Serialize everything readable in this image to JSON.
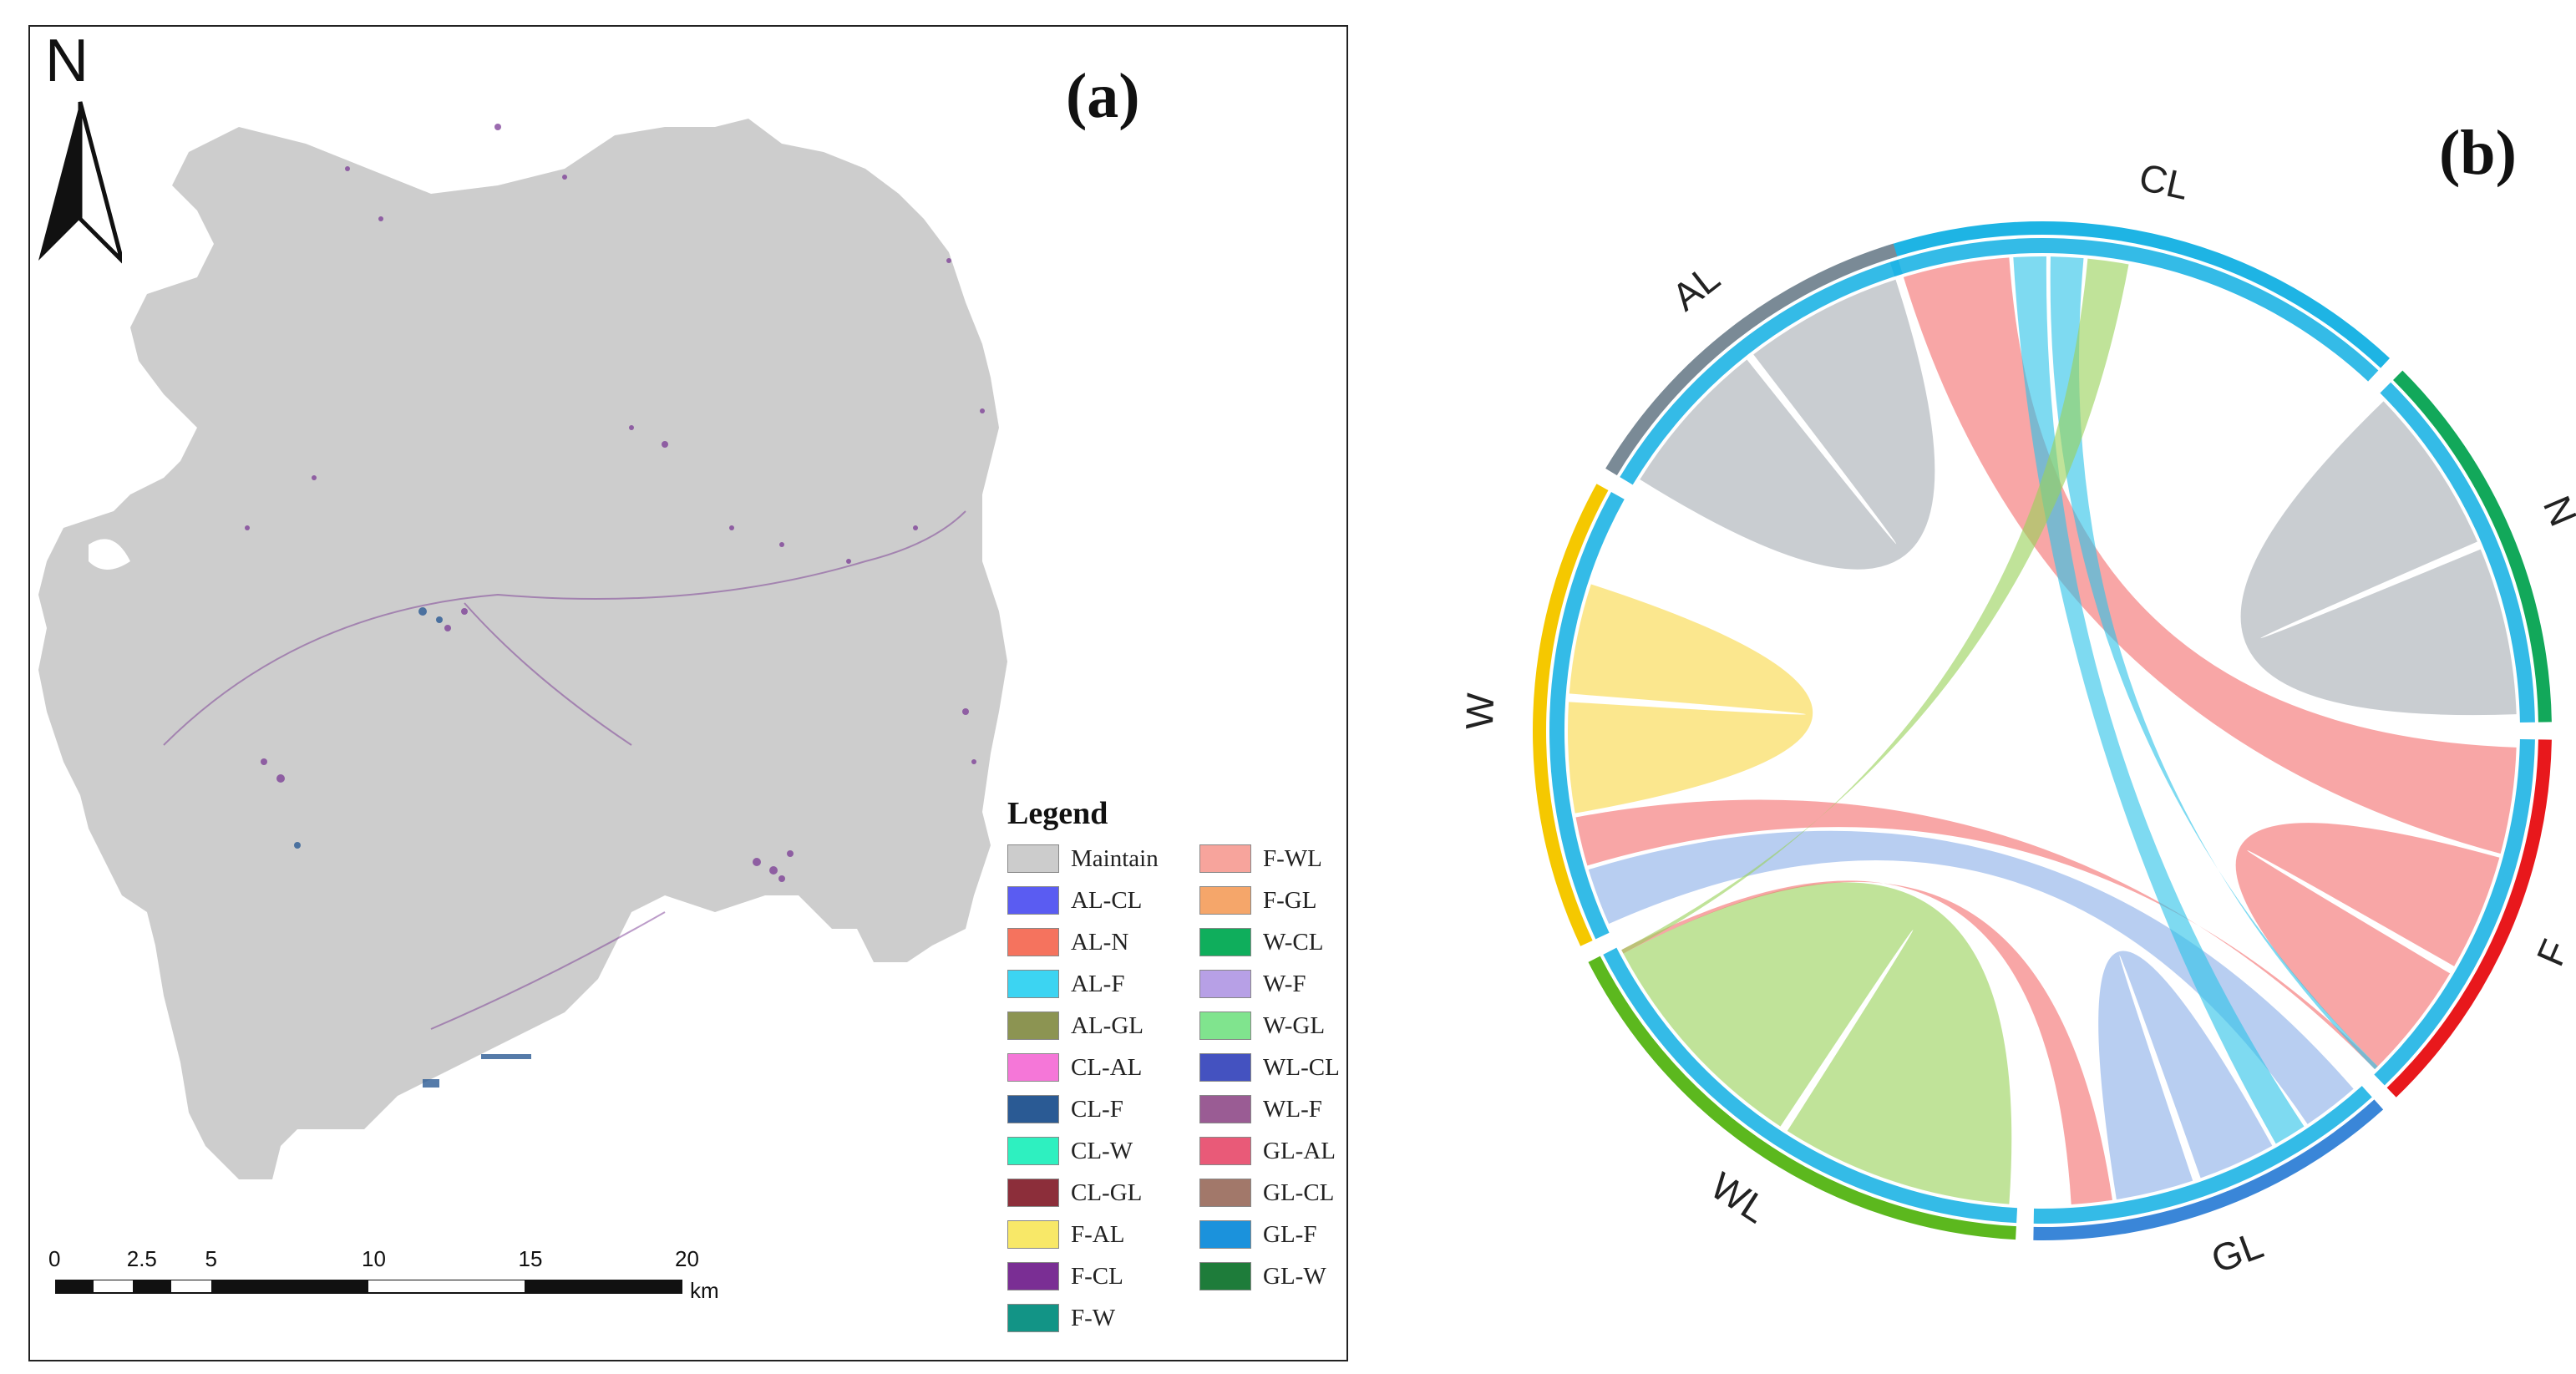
{
  "panel_a": {
    "label": "(a)",
    "north_arrow": {
      "letter": "N"
    },
    "legend": {
      "title": "Legend",
      "items": [
        {
          "label": "Maintain",
          "color": "#cccccc"
        },
        {
          "label": "AL-CL",
          "color": "#5a5cf2"
        },
        {
          "label": "AL-N",
          "color": "#f5735e"
        },
        {
          "label": "AL-F",
          "color": "#3cd4f2"
        },
        {
          "label": "AL-GL",
          "color": "#8c9452"
        },
        {
          "label": "CL-AL",
          "color": "#f577d8"
        },
        {
          "label": "CL-F",
          "color": "#2a5a94"
        },
        {
          "label": "CL-W",
          "color": "#2ef0c0"
        },
        {
          "label": "CL-GL",
          "color": "#8c2e3a"
        },
        {
          "label": "F-AL",
          "color": "#f8e868"
        },
        {
          "label": "F-CL",
          "color": "#7a2e94"
        },
        {
          "label": "F-W",
          "color": "#129486"
        },
        {
          "label": "F-WL",
          "color": "#f7a49c"
        },
        {
          "label": "F-GL",
          "color": "#f5a66a"
        },
        {
          "label": "W-CL",
          "color": "#0fae5c"
        },
        {
          "label": "W-F",
          "color": "#b7a0e6"
        },
        {
          "label": "W-GL",
          "color": "#80e48e"
        },
        {
          "label": "WL-CL",
          "color": "#4452c0"
        },
        {
          "label": "WL-F",
          "color": "#9a5c94"
        },
        {
          "label": "GL-AL",
          "color": "#e95a78"
        },
        {
          "label": "GL-CL",
          "color": "#a2786a"
        },
        {
          "label": "GL-F",
          "color": "#1b92dc"
        },
        {
          "label": "GL-W",
          "color": "#1e7c3a"
        }
      ]
    },
    "scale_bar": {
      "ticks": [
        "0",
        "2.5",
        "5",
        "10",
        "15",
        "20"
      ],
      "tick_values_km": [
        0,
        2.5,
        5,
        10,
        15,
        20
      ],
      "unit": "km"
    }
  },
  "panel_b": {
    "label": "(b)",
    "chord_diagram": {
      "groups": [
        {
          "name": "CL",
          "color": "#1eb4e4"
        },
        {
          "name": "N",
          "color": "#12a85a"
        },
        {
          "name": "F",
          "color": "#e8181c"
        },
        {
          "name": "GL",
          "color": "#3a86d8"
        },
        {
          "name": "WL",
          "color": "#5cb81e"
        },
        {
          "name": "W",
          "color": "#f5c800"
        },
        {
          "name": "AL",
          "color": "#7a8a96"
        }
      ],
      "links": [
        {
          "from": "F",
          "to": "CL",
          "color": "#f47070"
        },
        {
          "from": "N",
          "to": "N",
          "color": "#a8aeb4"
        },
        {
          "from": "F",
          "to": "F",
          "color": "#f47070"
        },
        {
          "from": "AL",
          "to": "AL",
          "color": "#a8aeb4"
        },
        {
          "from": "WL",
          "to": "WL",
          "color": "#9ad25a"
        },
        {
          "from": "W",
          "to": "GL",
          "color": "#8cb0e8"
        },
        {
          "from": "W",
          "to": "F",
          "color": "#f47070"
        },
        {
          "from": "W",
          "to": "W",
          "color": "#f8d848"
        },
        {
          "from": "CL",
          "to": "GL",
          "color": "#2ec4e8"
        },
        {
          "from": "CL",
          "to": "F",
          "color": "#2ec4e8"
        },
        {
          "from": "GL",
          "to": "GL",
          "color": "#8cb0e8"
        },
        {
          "from": "GL",
          "to": "WL",
          "color": "#f47070"
        },
        {
          "from": "WL",
          "to": "CL",
          "color": "#9ad25a"
        }
      ]
    }
  }
}
